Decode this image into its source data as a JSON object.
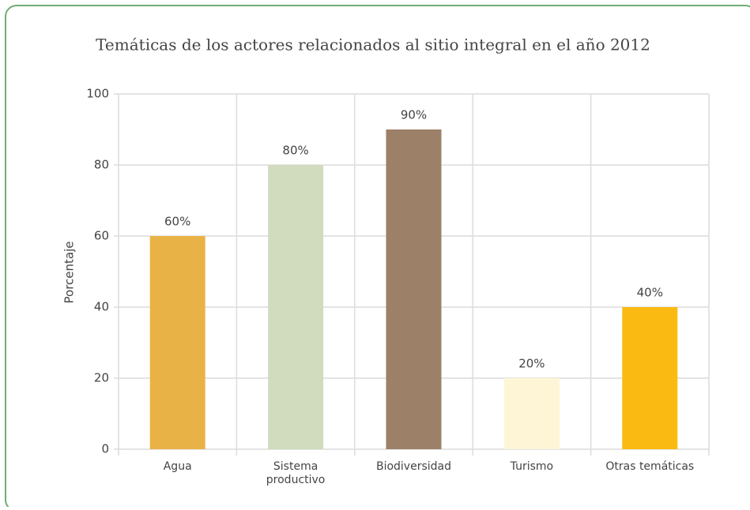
{
  "chart_data": {
    "type": "bar",
    "title": "Temáticas de los actores relacionados al sitio integral en el año 2012",
    "y_label": "Porcentaje",
    "categories": [
      "Agua",
      "Sistema\nproductivo",
      "Biodiversidad",
      "Turismo",
      "Otras temáticas"
    ],
    "values": [
      60,
      80,
      90,
      20,
      40
    ],
    "value_labels": [
      "60%",
      "80%",
      "90%",
      "20%",
      "40%"
    ],
    "colors": [
      "#e9b246",
      "#d0dcbd",
      "#9c8067",
      "#fdf5d5",
      "#fbba12"
    ],
    "ylim": [
      0,
      100
    ],
    "yticks": [
      0,
      20,
      40,
      60,
      80,
      100
    ],
    "grid": true
  }
}
